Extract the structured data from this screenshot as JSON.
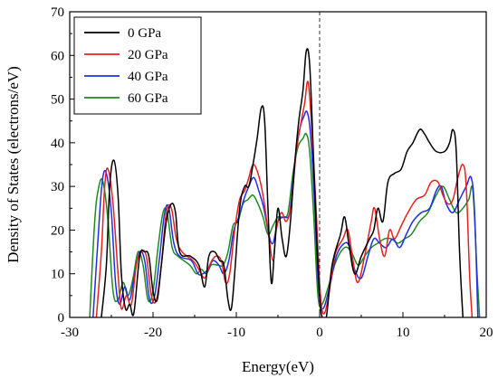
{
  "chart_data": {
    "type": "line",
    "xlabel": "Energy(eV)",
    "ylabel": "Density of States (electrons/eV)",
    "xlim": [
      -30,
      20
    ],
    "ylim": [
      0,
      70
    ],
    "xticks": [
      -30,
      -20,
      -10,
      0,
      10,
      20
    ],
    "yticks": [
      0,
      10,
      20,
      30,
      40,
      50,
      60,
      70
    ],
    "fermi_level": 0,
    "legend_position": "top-left",
    "grid": false,
    "series": [
      {
        "name": "0 GPa",
        "color": "#000000",
        "points": [
          [
            -26.2,
            0
          ],
          [
            -25.6,
            12
          ],
          [
            -25.2,
            30
          ],
          [
            -24.7,
            36
          ],
          [
            -24.2,
            28
          ],
          [
            -23.8,
            10
          ],
          [
            -23.3,
            2
          ],
          [
            -22.8,
            3
          ],
          [
            -22.3,
            1
          ],
          [
            -21.6,
            14
          ],
          [
            -21,
            15
          ],
          [
            -20.5,
            14
          ],
          [
            -20,
            6
          ],
          [
            -19.5,
            4
          ],
          [
            -19,
            12
          ],
          [
            -18.4,
            22
          ],
          [
            -17.8,
            26
          ],
          [
            -17.3,
            24
          ],
          [
            -16.8,
            15
          ],
          [
            -15.5,
            14
          ],
          [
            -14.5,
            12
          ],
          [
            -13.8,
            7
          ],
          [
            -13.3,
            14
          ],
          [
            -12.6,
            15
          ],
          [
            -12,
            13
          ],
          [
            -11.5,
            12
          ],
          [
            -11,
            4
          ],
          [
            -10.6,
            2
          ],
          [
            -10.2,
            10
          ],
          [
            -9.6,
            25
          ],
          [
            -9,
            30
          ],
          [
            -8.5,
            30
          ],
          [
            -8,
            35
          ],
          [
            -7.5,
            41
          ],
          [
            -7,
            48
          ],
          [
            -6.6,
            45
          ],
          [
            -6.2,
            25
          ],
          [
            -5.8,
            8
          ],
          [
            -5.4,
            16
          ],
          [
            -5,
            25
          ],
          [
            -4.5,
            18
          ],
          [
            -4,
            14
          ],
          [
            -3.5,
            22
          ],
          [
            -3,
            35
          ],
          [
            -2.5,
            45
          ],
          [
            -2,
            52
          ],
          [
            -1.6,
            61
          ],
          [
            -1.2,
            58
          ],
          [
            -0.8,
            40
          ],
          [
            -0.4,
            20
          ],
          [
            0,
            5
          ],
          [
            0.3,
            0
          ],
          [
            0.8,
            0
          ],
          [
            1.5,
            12
          ],
          [
            2.5,
            19
          ],
          [
            3,
            23
          ],
          [
            3.5,
            17
          ],
          [
            4.2,
            10
          ],
          [
            5,
            14
          ],
          [
            6,
            18
          ],
          [
            6.5,
            20
          ],
          [
            7,
            25
          ],
          [
            7.6,
            22
          ],
          [
            8.2,
            31
          ],
          [
            9,
            33
          ],
          [
            9.8,
            34
          ],
          [
            10.5,
            38
          ],
          [
            11.2,
            40
          ],
          [
            12,
            43
          ],
          [
            12.6,
            42
          ],
          [
            13.2,
            40
          ],
          [
            14,
            38
          ],
          [
            15,
            38
          ],
          [
            15.6,
            40
          ],
          [
            16,
            43
          ],
          [
            16.4,
            38
          ],
          [
            16.8,
            15
          ],
          [
            17.2,
            0
          ]
        ]
      },
      {
        "name": "20 GPa",
        "color": "#e8211f",
        "points": [
          [
            -26.8,
            0
          ],
          [
            -26.2,
            15
          ],
          [
            -25.8,
            30
          ],
          [
            -25.4,
            34
          ],
          [
            -24.8,
            26
          ],
          [
            -24.2,
            10
          ],
          [
            -23.8,
            2
          ],
          [
            -23.2,
            5
          ],
          [
            -22.6,
            3
          ],
          [
            -22,
            12
          ],
          [
            -21.4,
            15
          ],
          [
            -20.8,
            14
          ],
          [
            -20.2,
            5
          ],
          [
            -19.6,
            4
          ],
          [
            -19,
            12
          ],
          [
            -18.4,
            24
          ],
          [
            -17.8,
            25
          ],
          [
            -17.2,
            18
          ],
          [
            -16.5,
            15
          ],
          [
            -15.2,
            13
          ],
          [
            -14.5,
            11
          ],
          [
            -13.8,
            9
          ],
          [
            -13.2,
            12
          ],
          [
            -12.5,
            14
          ],
          [
            -11.8,
            13
          ],
          [
            -11.3,
            8
          ],
          [
            -10.8,
            10
          ],
          [
            -10.2,
            20
          ],
          [
            -9.6,
            27
          ],
          [
            -9,
            29
          ],
          [
            -8.5,
            32
          ],
          [
            -8,
            35
          ],
          [
            -7.4,
            33
          ],
          [
            -6.8,
            28
          ],
          [
            -6.2,
            20
          ],
          [
            -5.6,
            13
          ],
          [
            -5.2,
            20
          ],
          [
            -4.6,
            24
          ],
          [
            -4,
            22
          ],
          [
            -3.4,
            26
          ],
          [
            -2.8,
            38
          ],
          [
            -2.2,
            45
          ],
          [
            -1.8,
            49
          ],
          [
            -1.4,
            54
          ],
          [
            -1,
            45
          ],
          [
            -0.5,
            28
          ],
          [
            0,
            8
          ],
          [
            0.4,
            1
          ],
          [
            1,
            4
          ],
          [
            1.8,
            14
          ],
          [
            2.8,
            18
          ],
          [
            3.4,
            20
          ],
          [
            4,
            13
          ],
          [
            4.6,
            8
          ],
          [
            5.4,
            14
          ],
          [
            6.2,
            22
          ],
          [
            6.6,
            25
          ],
          [
            7.2,
            18
          ],
          [
            7.8,
            14
          ],
          [
            8.4,
            20
          ],
          [
            9,
            18
          ],
          [
            9.8,
            21
          ],
          [
            10.6,
            24
          ],
          [
            11.6,
            27
          ],
          [
            12.6,
            28
          ],
          [
            13.4,
            31
          ],
          [
            14.2,
            31
          ],
          [
            14.8,
            28
          ],
          [
            15.4,
            26
          ],
          [
            16,
            27
          ],
          [
            16.6,
            32
          ],
          [
            17.2,
            35
          ],
          [
            17.6,
            30
          ],
          [
            18,
            10
          ],
          [
            18.3,
            0
          ]
        ]
      },
      {
        "name": "40 GPa",
        "color": "#1f2fe8",
        "points": [
          [
            -27.2,
            0
          ],
          [
            -26.6,
            18
          ],
          [
            -26.1,
            31
          ],
          [
            -25.6,
            33
          ],
          [
            -25,
            24
          ],
          [
            -24.5,
            8
          ],
          [
            -24,
            3
          ],
          [
            -23.4,
            7
          ],
          [
            -22.8,
            4
          ],
          [
            -22.2,
            10
          ],
          [
            -21.6,
            15
          ],
          [
            -21,
            13
          ],
          [
            -20.4,
            4
          ],
          [
            -19.8,
            5
          ],
          [
            -19.2,
            14
          ],
          [
            -18.6,
            24
          ],
          [
            -18.1,
            25
          ],
          [
            -17.5,
            17
          ],
          [
            -16.8,
            14
          ],
          [
            -15.4,
            13
          ],
          [
            -14.6,
            10
          ],
          [
            -14,
            10
          ],
          [
            -13.4,
            11
          ],
          [
            -12.8,
            13
          ],
          [
            -12.1,
            12
          ],
          [
            -11.5,
            10
          ],
          [
            -10.9,
            13
          ],
          [
            -10.3,
            20
          ],
          [
            -9.7,
            23
          ],
          [
            -9.1,
            27
          ],
          [
            -8.5,
            30
          ],
          [
            -7.9,
            32
          ],
          [
            -7.3,
            29
          ],
          [
            -6.7,
            25
          ],
          [
            -6.1,
            19
          ],
          [
            -5.6,
            17
          ],
          [
            -5,
            22
          ],
          [
            -4.3,
            23
          ],
          [
            -3.6,
            24
          ],
          [
            -3,
            35
          ],
          [
            -2.4,
            43
          ],
          [
            -1.9,
            46
          ],
          [
            -1.5,
            47
          ],
          [
            -1.1,
            42
          ],
          [
            -0.6,
            26
          ],
          [
            -0.1,
            6
          ],
          [
            0.4,
            2
          ],
          [
            1.2,
            7
          ],
          [
            2,
            14
          ],
          [
            3,
            17
          ],
          [
            3.6,
            16
          ],
          [
            4.2,
            11
          ],
          [
            5,
            9
          ],
          [
            5.8,
            14
          ],
          [
            6.5,
            18
          ],
          [
            7.2,
            17
          ],
          [
            8,
            16
          ],
          [
            8.8,
            18
          ],
          [
            9.6,
            16
          ],
          [
            10.4,
            19
          ],
          [
            11.2,
            22
          ],
          [
            12.2,
            24
          ],
          [
            13.2,
            25
          ],
          [
            14,
            29
          ],
          [
            14.6,
            30
          ],
          [
            15.2,
            26
          ],
          [
            16,
            24
          ],
          [
            16.8,
            27
          ],
          [
            17.6,
            30
          ],
          [
            18.2,
            32
          ],
          [
            18.6,
            24
          ],
          [
            19,
            0
          ]
        ]
      },
      {
        "name": "60 GPa",
        "color": "#1f8a1f",
        "points": [
          [
            -27.6,
            0
          ],
          [
            -27,
            22
          ],
          [
            -26.5,
            30
          ],
          [
            -26,
            31
          ],
          [
            -25.4,
            22
          ],
          [
            -24.8,
            6
          ],
          [
            -24.2,
            4
          ],
          [
            -23.6,
            8
          ],
          [
            -23,
            5
          ],
          [
            -22.4,
            9
          ],
          [
            -21.8,
            15
          ],
          [
            -21.2,
            12
          ],
          [
            -20.6,
            4
          ],
          [
            -20,
            6
          ],
          [
            -19.4,
            16
          ],
          [
            -18.8,
            24
          ],
          [
            -18.3,
            24
          ],
          [
            -17.7,
            16
          ],
          [
            -17,
            14
          ],
          [
            -15.6,
            12
          ],
          [
            -14.8,
            10
          ],
          [
            -14.2,
            11
          ],
          [
            -13.6,
            10
          ],
          [
            -13,
            12
          ],
          [
            -12.3,
            12
          ],
          [
            -11.6,
            12
          ],
          [
            -11,
            15
          ],
          [
            -10.4,
            21
          ],
          [
            -9.8,
            22
          ],
          [
            -9.2,
            26
          ],
          [
            -8.6,
            27
          ],
          [
            -8,
            28
          ],
          [
            -7.4,
            26
          ],
          [
            -6.8,
            23
          ],
          [
            -6.2,
            19
          ],
          [
            -5.6,
            21
          ],
          [
            -5,
            23
          ],
          [
            -4.4,
            23
          ],
          [
            -3.8,
            24
          ],
          [
            -3.2,
            33
          ],
          [
            -2.6,
            39
          ],
          [
            -2,
            41
          ],
          [
            -1.6,
            42
          ],
          [
            -1.2,
            38
          ],
          [
            -0.7,
            23
          ],
          [
            -0.2,
            5
          ],
          [
            0.3,
            3
          ],
          [
            1.2,
            8
          ],
          [
            2,
            13
          ],
          [
            3,
            16
          ],
          [
            3.8,
            15
          ],
          [
            4.6,
            12
          ],
          [
            5.4,
            14
          ],
          [
            6.2,
            16
          ],
          [
            7,
            17
          ],
          [
            7.8,
            18
          ],
          [
            8.6,
            18
          ],
          [
            9.4,
            17
          ],
          [
            10.2,
            18
          ],
          [
            11,
            19
          ],
          [
            12,
            22
          ],
          [
            13,
            24
          ],
          [
            14,
            28
          ],
          [
            14.8,
            30
          ],
          [
            15.6,
            27
          ],
          [
            16.4,
            24
          ],
          [
            17.2,
            25
          ],
          [
            17.9,
            27
          ],
          [
            18.4,
            29
          ],
          [
            18.9,
            10
          ],
          [
            19.2,
            0
          ]
        ]
      }
    ]
  }
}
